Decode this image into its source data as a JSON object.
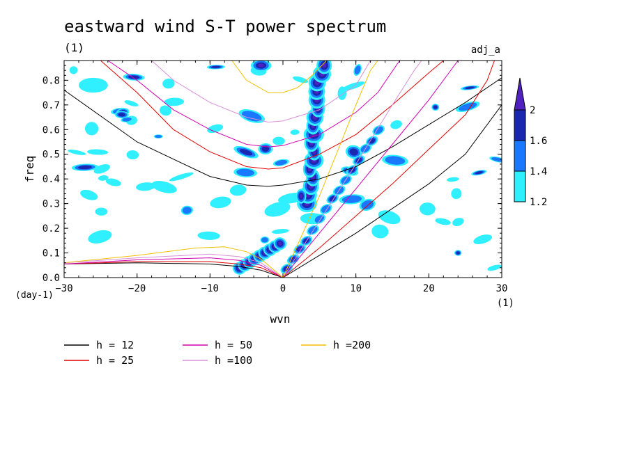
{
  "chart_data": {
    "type": "heatmap",
    "title": "eastward wind S-T power spectrum",
    "units_label": "(1)",
    "tag": "adj_a",
    "xlabel": "wvn",
    "ylabel": "freq",
    "x_unit": "(1)",
    "y_unit": "(day-1)",
    "xlim": [
      -30,
      30
    ],
    "ylim": [
      0,
      0.88
    ],
    "xticks": [
      -30,
      -20,
      -10,
      0,
      10,
      20,
      30
    ],
    "yticks": [
      0.0,
      0.1,
      0.2,
      0.3,
      0.4,
      0.5,
      0.6,
      0.7,
      0.8
    ],
    "colorbar": {
      "levels": [
        1.2,
        1.4,
        1.6,
        2
      ],
      "labels": [
        "1.2",
        "1.4",
        "1.6",
        "2"
      ],
      "colors": [
        "#30f0ff",
        "#1a78ff",
        "#1a28b0",
        "#5020c0"
      ]
    },
    "legend": [
      {
        "label": "h = 12",
        "color": "#000000"
      },
      {
        "label": "h = 25",
        "color": "#e00000"
      },
      {
        "label": "h = 50",
        "color": "#d000b0"
      },
      {
        "label": "h =100",
        "color": "#d890d8"
      },
      {
        "label": "h =200",
        "color": "#f0c000"
      }
    ],
    "dispersion_curves": [
      {
        "h": 12,
        "color": "#000000",
        "kelvin": [
          [
            0,
            0
          ],
          [
            5,
            0.09
          ],
          [
            10,
            0.18
          ],
          [
            15,
            0.28
          ],
          [
            20,
            0.38
          ],
          [
            25,
            0.5
          ],
          [
            30,
            0.7
          ]
        ],
        "rossby": [
          [
            -30,
            0.055
          ],
          [
            -20,
            0.06
          ],
          [
            -10,
            0.055
          ],
          [
            -6,
            0.045
          ],
          [
            -3,
            0.03
          ],
          [
            0,
            0
          ]
        ],
        "gravity": [
          [
            -30,
            0.76
          ],
          [
            -20,
            0.55
          ],
          [
            -10,
            0.41
          ],
          [
            -5,
            0.375
          ],
          [
            -2,
            0.37
          ],
          [
            0,
            0.375
          ],
          [
            5,
            0.4
          ],
          [
            10,
            0.45
          ],
          [
            15,
            0.53
          ],
          [
            20,
            0.62
          ],
          [
            25,
            0.71
          ],
          [
            30,
            0.81
          ]
        ]
      },
      {
        "h": 25,
        "color": "#e00000",
        "kelvin": [
          [
            0,
            0
          ],
          [
            5,
            0.12
          ],
          [
            10,
            0.25
          ],
          [
            15,
            0.38
          ],
          [
            20,
            0.52
          ],
          [
            25,
            0.66
          ],
          [
            28,
            0.8
          ],
          [
            29,
            0.88
          ]
        ],
        "rossby": [
          [
            -30,
            0.055
          ],
          [
            -20,
            0.065
          ],
          [
            -10,
            0.065
          ],
          [
            -6,
            0.055
          ],
          [
            -3,
            0.04
          ],
          [
            0,
            0
          ]
        ],
        "gravity": [
          [
            -25,
            0.88
          ],
          [
            -20,
            0.75
          ],
          [
            -15,
            0.6
          ],
          [
            -10,
            0.51
          ],
          [
            -5,
            0.45
          ],
          [
            -2,
            0.44
          ],
          [
            0,
            0.445
          ],
          [
            5,
            0.5
          ],
          [
            10,
            0.58
          ],
          [
            15,
            0.7
          ],
          [
            20,
            0.83
          ],
          [
            22,
            0.88
          ]
        ]
      },
      {
        "h": 50,
        "color": "#d000b0",
        "kelvin": [
          [
            0,
            0
          ],
          [
            5,
            0.18
          ],
          [
            10,
            0.36
          ],
          [
            15,
            0.54
          ],
          [
            20,
            0.72
          ],
          [
            24,
            0.88
          ]
        ],
        "rossby": [
          [
            -30,
            0.055
          ],
          [
            -20,
            0.072
          ],
          [
            -10,
            0.08
          ],
          [
            -6,
            0.07
          ],
          [
            -3,
            0.05
          ],
          [
            0,
            0
          ]
        ],
        "gravity": [
          [
            -24,
            0.88
          ],
          [
            -20,
            0.8
          ],
          [
            -15,
            0.68
          ],
          [
            -10,
            0.6
          ],
          [
            -5,
            0.54
          ],
          [
            -2,
            0.53
          ],
          [
            0,
            0.535
          ],
          [
            5,
            0.58
          ],
          [
            10,
            0.67
          ],
          [
            13,
            0.75
          ],
          [
            16,
            0.88
          ]
        ]
      },
      {
        "h": 100,
        "color": "#d890d8",
        "kelvin": [
          [
            0,
            0
          ],
          [
            5,
            0.23
          ],
          [
            10,
            0.46
          ],
          [
            15,
            0.7
          ],
          [
            18,
            0.84
          ],
          [
            19,
            0.88
          ]
        ],
        "rossby": [
          [
            -30,
            0.06
          ],
          [
            -20,
            0.08
          ],
          [
            -10,
            0.095
          ],
          [
            -6,
            0.085
          ],
          [
            -3,
            0.06
          ],
          [
            0,
            0
          ]
        ],
        "gravity": [
          [
            -18,
            0.88
          ],
          [
            -15,
            0.8
          ],
          [
            -10,
            0.71
          ],
          [
            -5,
            0.65
          ],
          [
            -2,
            0.63
          ],
          [
            0,
            0.635
          ],
          [
            5,
            0.68
          ],
          [
            10,
            0.78
          ],
          [
            12,
            0.88
          ]
        ]
      },
      {
        "h": 200,
        "color": "#f0c000",
        "kelvin": [
          [
            0,
            0
          ],
          [
            5,
            0.33
          ],
          [
            8,
            0.55
          ],
          [
            10,
            0.7
          ],
          [
            12,
            0.84
          ],
          [
            13,
            0.88
          ]
        ],
        "rossby": [
          [
            -30,
            0.06
          ],
          [
            -20,
            0.09
          ],
          [
            -12,
            0.12
          ],
          [
            -8,
            0.125
          ],
          [
            -5,
            0.105
          ],
          [
            -3,
            0.075
          ],
          [
            0,
            0
          ]
        ],
        "gravity": [
          [
            -7,
            0.88
          ],
          [
            -5,
            0.8
          ],
          [
            -2,
            0.75
          ],
          [
            0,
            0.75
          ],
          [
            2,
            0.77
          ],
          [
            4,
            0.82
          ],
          [
            6,
            0.88
          ]
        ]
      }
    ]
  }
}
